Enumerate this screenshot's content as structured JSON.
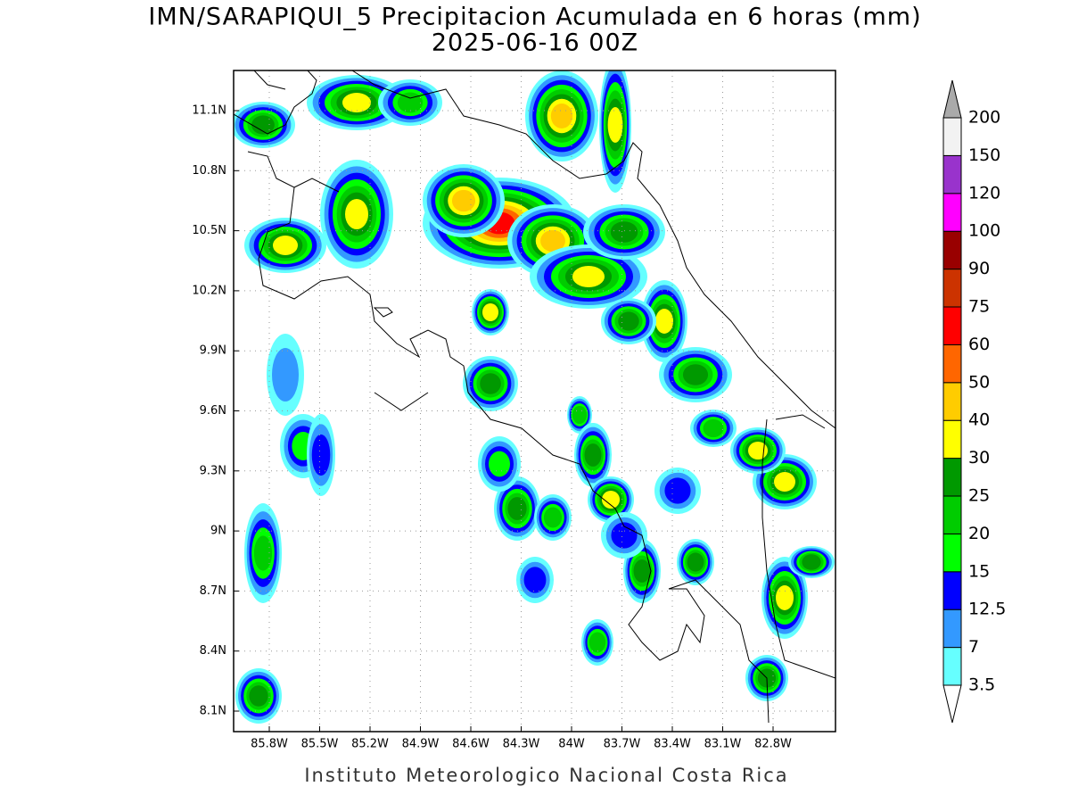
{
  "title": "IMN/SARAPIQUI_5 Precipitacion Acumulada en 6 horas (mm)",
  "subtitle": "2025-06-16 00Z",
  "map": {
    "lon_ticks": [
      "85.8W",
      "85.5W",
      "85.2W",
      "84.9W",
      "84.6W",
      "84.3W",
      "84W",
      "83.7W",
      "83.4W",
      "83.1W",
      "82.8W"
    ],
    "lat_ticks": [
      "11.1N",
      "10.8N",
      "10.5N",
      "10.2N",
      "9.9N",
      "9.6N",
      "9.3N",
      "9N",
      "8.7N",
      "8.4N",
      "8.1N"
    ]
  },
  "colorbar": {
    "levels": [
      "3.5",
      "7",
      "12.5",
      "15",
      "20",
      "25",
      "30",
      "40",
      "50",
      "60",
      "75",
      "90",
      "100",
      "120",
      "150",
      "200"
    ],
    "colors": [
      "#ffffff",
      "#66ffff",
      "#3399ff",
      "#0000ff",
      "#00ff00",
      "#00cc00",
      "#009900",
      "#ffff00",
      "#ffcc00",
      "#ff6600",
      "#ff0000",
      "#cc3300",
      "#990000",
      "#ff00ff",
      "#9933cc",
      "#f2f2f2",
      "#aaaaaa"
    ]
  },
  "footer": "Instituto Meteorologico Nacional Costa Rica"
}
